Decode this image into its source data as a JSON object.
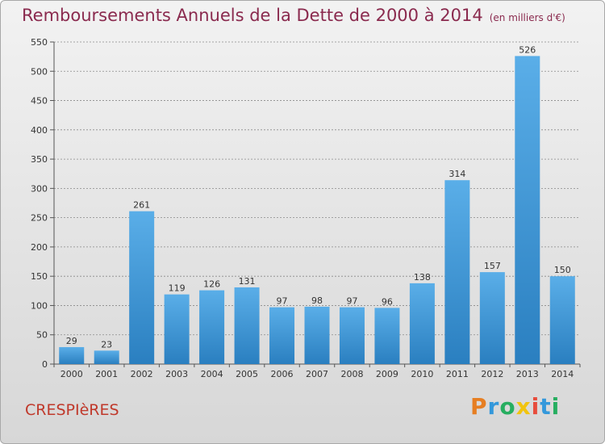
{
  "header": {
    "title": "Remboursements Annuels de la Dette de 2000 à 2014",
    "subtitle": "(en milliers d'€)"
  },
  "commune": "CRESPIèRES",
  "logo": {
    "text": "Proxiti",
    "letters": [
      {
        "char": "P",
        "color": "#e67e22"
      },
      {
        "char": "r",
        "color": "#3498db"
      },
      {
        "char": "o",
        "color": "#27ae60"
      },
      {
        "char": "x",
        "color": "#f1c40f"
      },
      {
        "char": "i",
        "color": "#e74c3c"
      },
      {
        "char": "t",
        "color": "#3498db"
      },
      {
        "char": "i",
        "color": "#27ae60"
      }
    ]
  },
  "colors": {
    "bar_top": "#5aaee8",
    "bar_bottom": "#2a7fc0",
    "title": "#8a2a4e",
    "grid": "#8a8a8a"
  },
  "chart_data": {
    "type": "bar",
    "categories": [
      "2000",
      "2001",
      "2002",
      "2003",
      "2004",
      "2005",
      "2006",
      "2007",
      "2008",
      "2009",
      "2010",
      "2011",
      "2012",
      "2013",
      "2014"
    ],
    "values": [
      29,
      23,
      261,
      119,
      126,
      131,
      97,
      98,
      97,
      96,
      138,
      314,
      157,
      526,
      150
    ],
    "ylim": [
      0,
      550
    ],
    "yticks": [
      0,
      50,
      100,
      150,
      200,
      250,
      300,
      350,
      400,
      450,
      500,
      550
    ],
    "grid": true,
    "grid_style": "dashed"
  }
}
